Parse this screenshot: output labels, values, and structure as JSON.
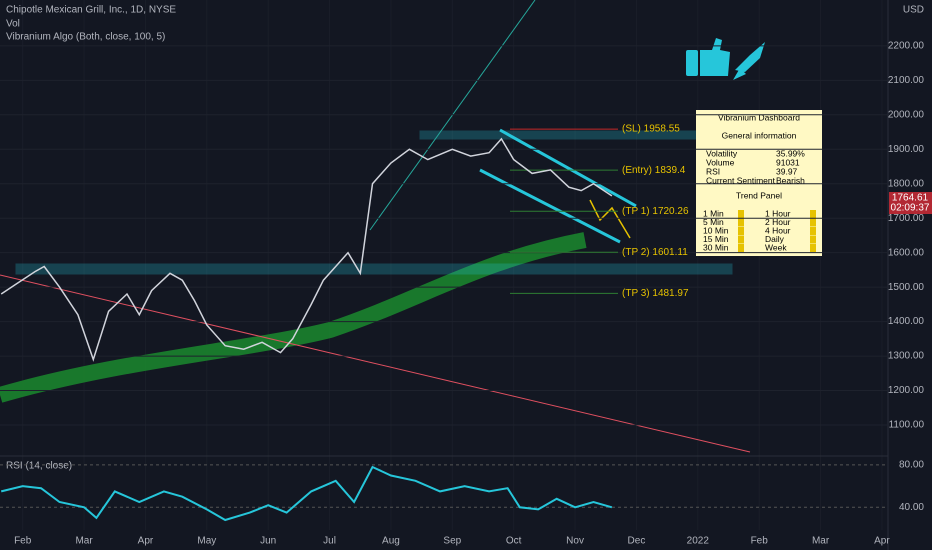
{
  "chart_data": [
    {
      "type": "line",
      "title": "Chipotle Mexican Grill, Inc., 1D, NYSE",
      "subtitle": "Vol",
      "indicator": "Vibranium Algo (Both, close, 100, 5)",
      "currency": "USD",
      "last_price": "1764.61",
      "countdown": "02:09:37",
      "color": "#d1d4dc",
      "x": [
        -0.35,
        -0.1,
        0.2,
        0.35,
        0.6,
        0.9,
        1.15,
        1.4,
        1.7,
        1.9,
        2.1,
        2.4,
        2.6,
        2.8,
        3.0,
        3.3,
        3.6,
        3.9,
        4.2,
        4.4,
        4.7,
        4.9,
        5.1,
        5.3,
        5.5,
        5.7,
        6.0,
        6.3,
        6.6,
        7.0,
        7.3,
        7.6,
        7.8,
        8.0,
        8.3,
        8.6,
        8.9,
        9.1,
        9.3,
        9.6
      ],
      "values": [
        1480,
        1510,
        1545,
        1560,
        1500,
        1420,
        1290,
        1430,
        1480,
        1420,
        1490,
        1540,
        1520,
        1460,
        1390,
        1330,
        1320,
        1340,
        1310,
        1350,
        1450,
        1520,
        1560,
        1600,
        1540,
        1800,
        1860,
        1900,
        1870,
        1900,
        1880,
        1890,
        1930,
        1870,
        1830,
        1840,
        1790,
        1780,
        1800,
        1764.61
      ],
      "xlim": [
        -0.37,
        14.05
      ],
      "xticks": [
        {
          "value": 0,
          "label": "Feb"
        },
        {
          "value": 1,
          "label": "Mar"
        },
        {
          "value": 2,
          "label": "Apr"
        },
        {
          "value": 3,
          "label": "May"
        },
        {
          "value": 4,
          "label": "Jun"
        },
        {
          "value": 5,
          "label": "Jul"
        },
        {
          "value": 6,
          "label": "Aug"
        },
        {
          "value": 7,
          "label": "Sep"
        },
        {
          "value": 8,
          "label": "Oct"
        },
        {
          "value": 9,
          "label": "Nov"
        },
        {
          "value": 10,
          "label": "Dec"
        },
        {
          "value": 11,
          "label": "2022"
        },
        {
          "value": 12,
          "label": "Feb"
        },
        {
          "value": 13,
          "label": "Mar"
        },
        {
          "value": 14,
          "label": "Apr"
        }
      ],
      "ylim": [
        1013,
        2333
      ],
      "yticks": [
        {
          "value": 1100,
          "label": "1100.00"
        },
        {
          "value": 1200,
          "label": "1200.00"
        },
        {
          "value": 1300,
          "label": "1300.00"
        },
        {
          "value": 1400,
          "label": "1400.00"
        },
        {
          "value": 1500,
          "label": "1500.00"
        },
        {
          "value": 1600,
          "label": "1600.00"
        },
        {
          "value": 1700,
          "label": "1700.00"
        },
        {
          "value": 1800,
          "label": "1800.00"
        },
        {
          "value": 1900,
          "label": "1900.00"
        },
        {
          "value": 2000,
          "label": "2000.00"
        },
        {
          "value": 2100,
          "label": "2100.00"
        },
        {
          "value": 2200,
          "label": "2200.00"
        }
      ],
      "grid": true,
      "levels": [
        {
          "label": "(SL) 1958.55",
          "value": 1958.55
        },
        {
          "label": "(Entry) 1839.4",
          "value": 1839.4
        },
        {
          "label": "(TP 1) 1720.26",
          "value": 1720.26
        },
        {
          "label": "(TP 2) 1601.11",
          "value": 1601.11
        },
        {
          "label": "(TP 3) 1481.97",
          "value": 1481.97
        }
      ]
    },
    {
      "type": "line",
      "title": "RSI (14, close)",
      "color": "#26c6da",
      "x": [
        -0.35,
        0,
        0.3,
        0.6,
        1.0,
        1.2,
        1.5,
        1.9,
        2.3,
        2.6,
        3.0,
        3.3,
        3.7,
        4.0,
        4.3,
        4.7,
        5.1,
        5.4,
        5.7,
        6.0,
        6.4,
        6.8,
        7.2,
        7.6,
        7.9,
        8.1,
        8.4,
        8.7,
        9.0,
        9.3,
        9.6
      ],
      "values": [
        55,
        60,
        58,
        45,
        40,
        30,
        55,
        45,
        55,
        50,
        38,
        28,
        35,
        42,
        35,
        55,
        65,
        45,
        78,
        70,
        65,
        55,
        60,
        55,
        58,
        40,
        38,
        48,
        40,
        45,
        40
      ],
      "xlim": [
        -0.37,
        14.05
      ],
      "ylim": [
        18.6,
        88.4
      ],
      "yticks": [
        {
          "value": 40,
          "label": "40.00"
        },
        {
          "value": 80,
          "label": "80.00"
        }
      ]
    }
  ],
  "dashboard": {
    "title": "Vibranium Dashboard",
    "general": "General information",
    "rows": [
      [
        "Volatility",
        "35.99%"
      ],
      [
        "Volume",
        "91031"
      ],
      [
        "RSI",
        "39.97"
      ],
      [
        "Current Sentiment",
        "Bearish"
      ]
    ],
    "trend": "Trend Panel",
    "left": [
      "1 Min",
      "5 Min",
      "10 Min",
      "15 Min",
      "30 Min"
    ],
    "right": [
      "1 Hour",
      "2 Hour",
      "4 Hour",
      "Daily",
      "Week"
    ]
  }
}
